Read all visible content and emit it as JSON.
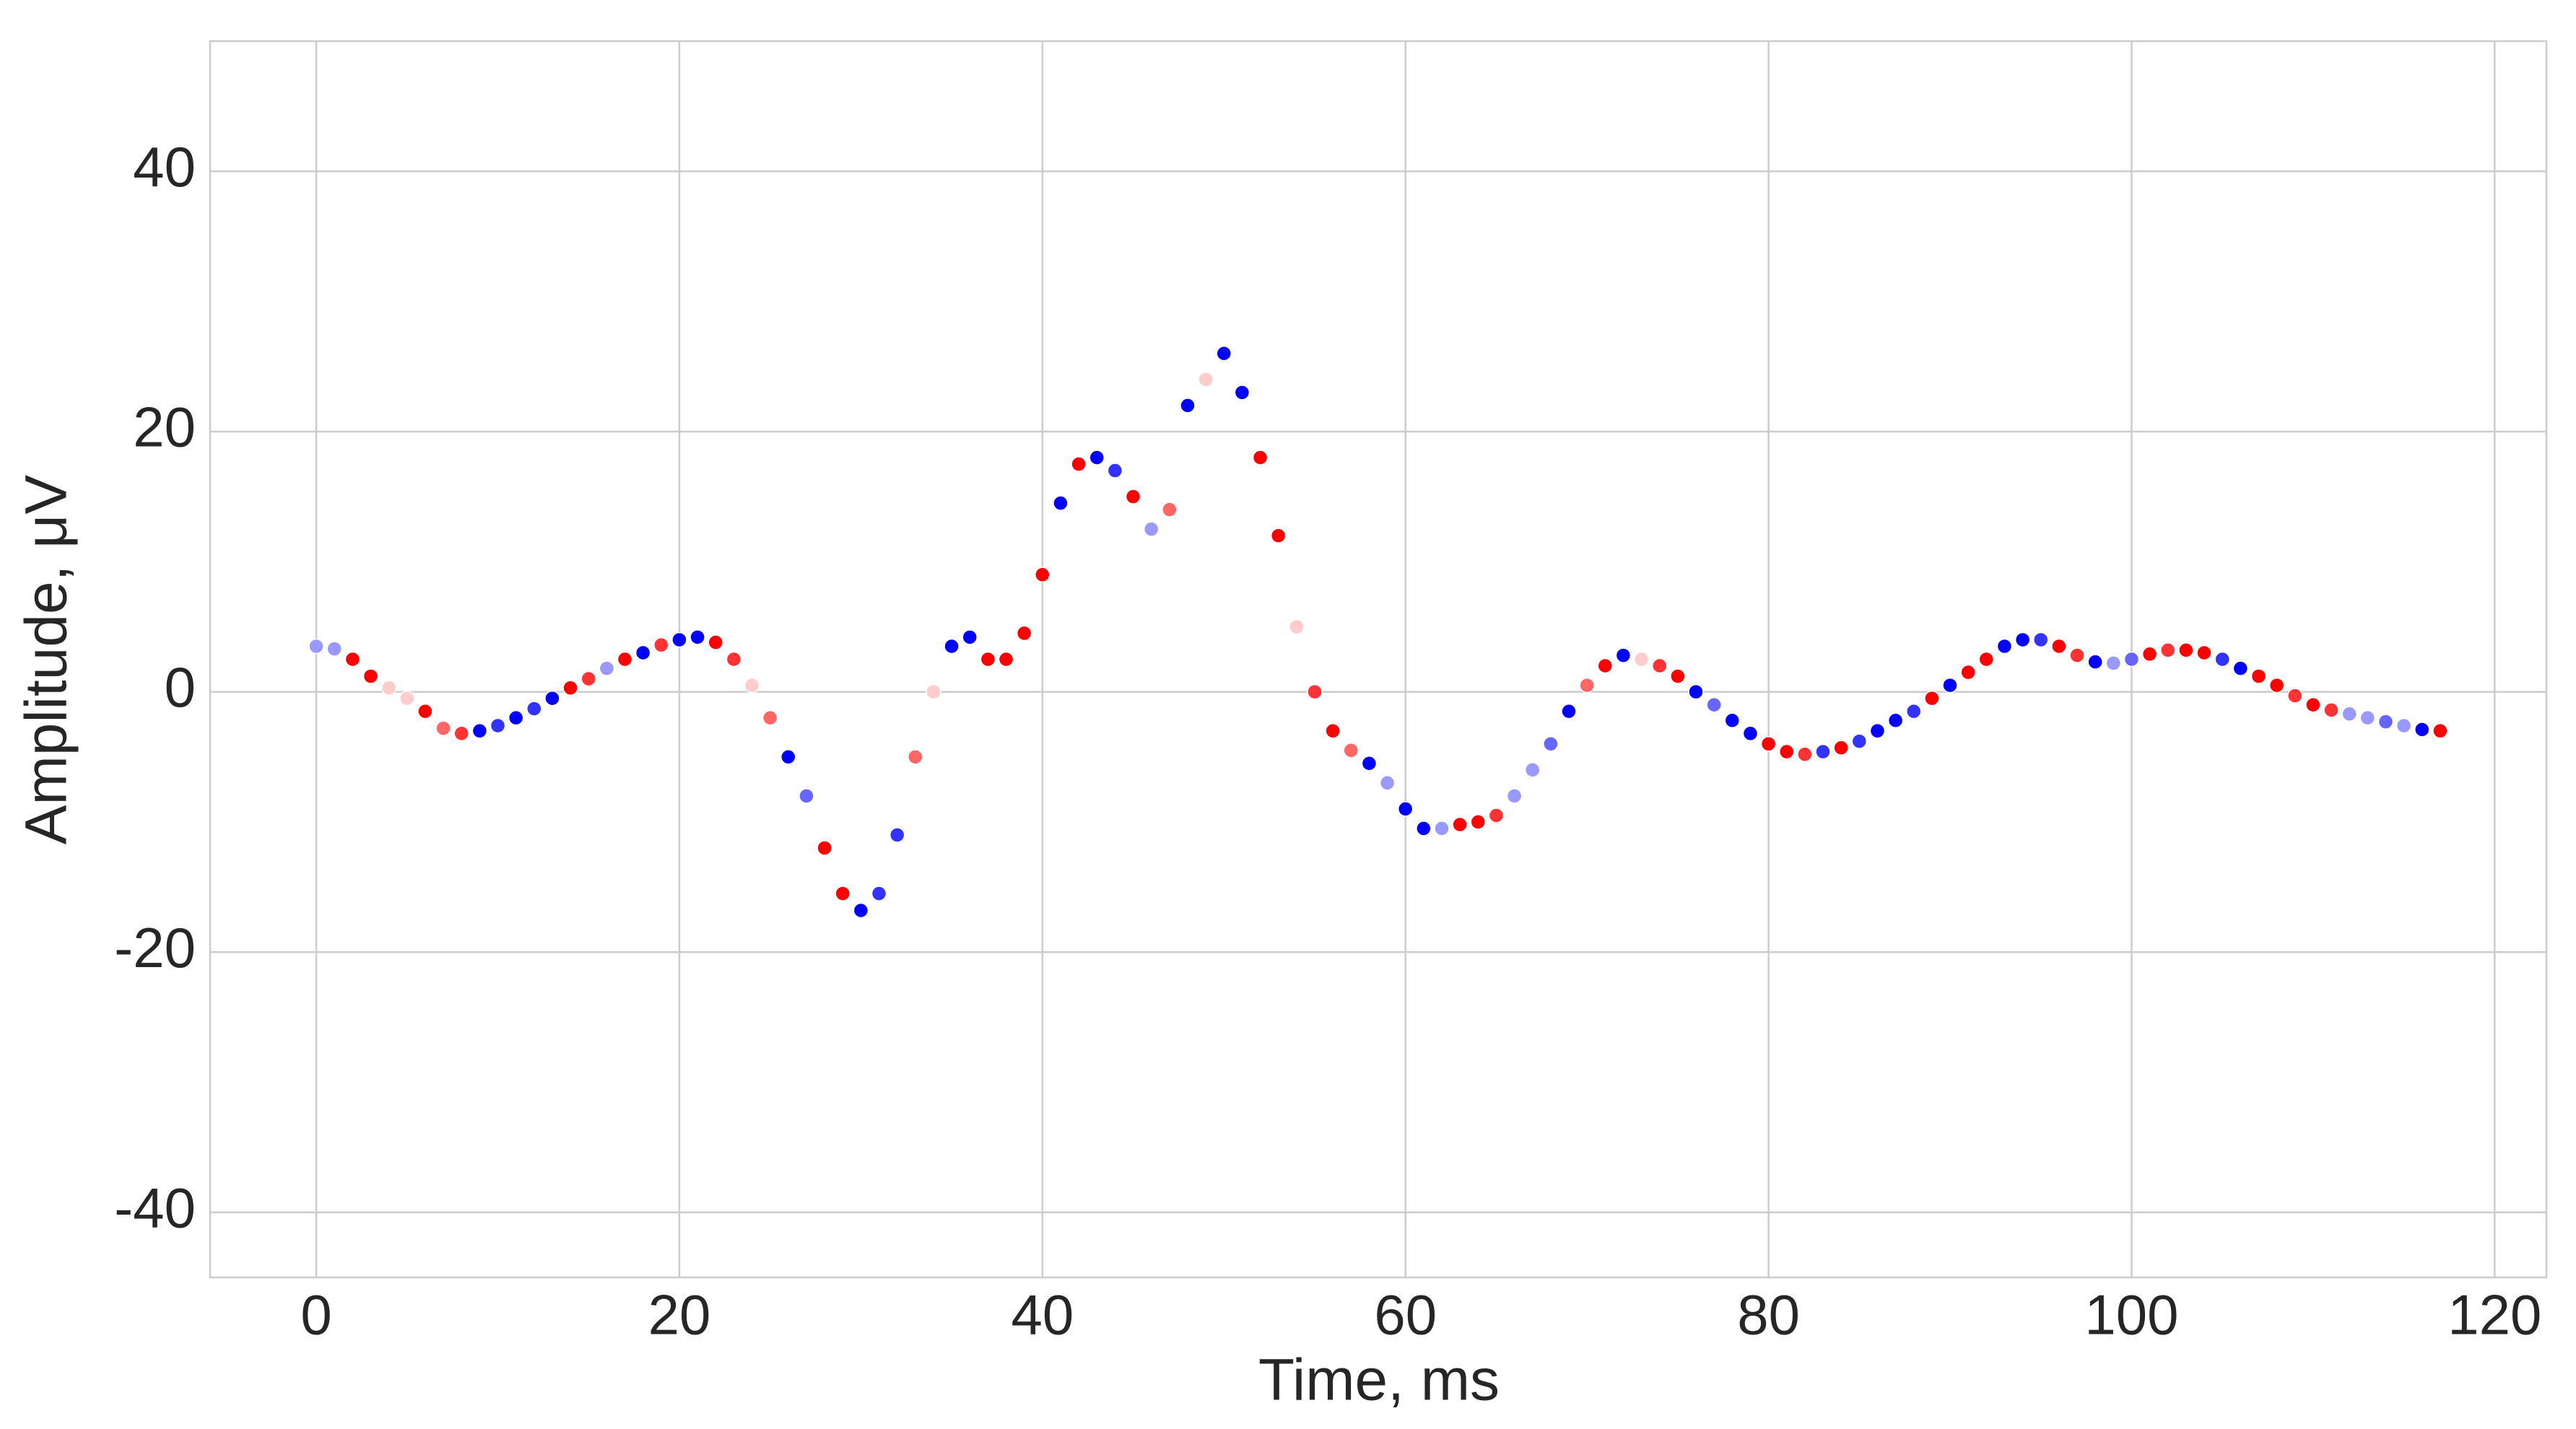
{
  "chart_data": {
    "type": "scatter",
    "xlabel": "Time, ms",
    "ylabel": "Amplitude, μV",
    "x": [
      0,
      1,
      2,
      3,
      4,
      5,
      6,
      7,
      8,
      9,
      10,
      11,
      12,
      13,
      14,
      15,
      16,
      17,
      18,
      19,
      20,
      21,
      22,
      23,
      24,
      25,
      26,
      27,
      28,
      29,
      30,
      31,
      32,
      33,
      34,
      35,
      36,
      37,
      38,
      39,
      40,
      41,
      42,
      43,
      44,
      45,
      46,
      47,
      48,
      49,
      50,
      51,
      52,
      53,
      54,
      55,
      56,
      57,
      58,
      59,
      60,
      61,
      62,
      63,
      64,
      65,
      66,
      67,
      68,
      69,
      70,
      71,
      72,
      73,
      74,
      75,
      76,
      77,
      78,
      79,
      80,
      81,
      82,
      83,
      84,
      85,
      86,
      87,
      88,
      89,
      90,
      91,
      92,
      93,
      94,
      95,
      96,
      97,
      98,
      99,
      100,
      101,
      102,
      103,
      104,
      105,
      106,
      107,
      108,
      109,
      110,
      111,
      112,
      113,
      114,
      115,
      116,
      117
    ],
    "values": [
      3.5,
      3.3,
      2.5,
      1.2,
      0.3,
      -0.5,
      -1.5,
      -2.8,
      -3.2,
      -3.0,
      -2.6,
      -2.0,
      -1.3,
      -0.5,
      0.3,
      1.0,
      1.8,
      2.5,
      3.0,
      3.6,
      4.0,
      4.2,
      3.8,
      2.5,
      0.5,
      -2.0,
      -5.0,
      -8.0,
      -12,
      -15.5,
      -16.8,
      -15.5,
      -11,
      -5,
      0,
      3.5,
      4.2,
      2.5,
      2.5,
      4.5,
      9,
      14.5,
      17.5,
      18,
      17,
      15,
      12.5,
      14,
      22,
      24,
      26,
      23,
      18,
      12,
      5,
      0,
      -3,
      -4.5,
      -5.5,
      -7,
      -9,
      -10.5,
      -10.5,
      -10.2,
      -10,
      -9.5,
      -8,
      -6,
      -4,
      -1.5,
      0.5,
      2,
      2.8,
      2.5,
      2,
      1.2,
      0,
      -1,
      -2.2,
      -3.2,
      -4,
      -4.6,
      -4.8,
      -4.6,
      -4.3,
      -3.8,
      -3,
      -2.2,
      -1.5,
      -0.5,
      0.5,
      1.5,
      2.5,
      3.5,
      4.0,
      4.0,
      3.5,
      2.8,
      2.3,
      2.2,
      2.5,
      2.9,
      3.2,
      3.2,
      3.0,
      2.5,
      1.8,
      1.2,
      0.5,
      -0.3,
      -1.0,
      -1.4,
      -1.7,
      -2.0,
      -2.3,
      -2.6,
      -2.9,
      -3.0
    ],
    "colors": [
      "#9999ff",
      "#9999ff",
      "#ff0000",
      "#ff0000",
      "#ffcccc",
      "#ffcccc",
      "#ff0000",
      "#ff6666",
      "#ff3333",
      "#0000ff",
      "#3333ff",
      "#0000ff",
      "#3333ff",
      "#0000ff",
      "#ff0000",
      "#ff3333",
      "#9999ff",
      "#ff0000",
      "#0000ff",
      "#ff3333",
      "#0000ff",
      "#0000ff",
      "#ff0000",
      "#ff3333",
      "#ffcccc",
      "#ff6666",
      "#0000ff",
      "#6666ff",
      "#ff0000",
      "#ff0000",
      "#0000ff",
      "#3333ff",
      "#3333ff",
      "#ff6666",
      "#ffcccc",
      "#0000ff",
      "#0000ff",
      "#ff0000",
      "#ff0000",
      "#ff0000",
      "#ff0000",
      "#0000ff",
      "#ff0000",
      "#0000ff",
      "#3333ff",
      "#ff0000",
      "#9999ff",
      "#ff6666",
      "#0000ff",
      "#ffcccc",
      "#0000ff",
      "#0000ff",
      "#ff0000",
      "#ff0000",
      "#ffcccc",
      "#ff3333",
      "#ff0000",
      "#ff6666",
      "#0000ff",
      "#9999ff",
      "#0000ff",
      "#0000ff",
      "#9999ff",
      "#ff0000",
      "#ff0000",
      "#ff3333",
      "#9999ff",
      "#9999ff",
      "#6666ff",
      "#0000ff",
      "#ff6666",
      "#ff0000",
      "#0000ff",
      "#ffcccc",
      "#ff3333",
      "#ff0000",
      "#0000ff",
      "#6666ff",
      "#0000ff",
      "#0000ff",
      "#ff0000",
      "#ff0000",
      "#ff3333",
      "#3333ff",
      "#ff0000",
      "#3333ff",
      "#0000ff",
      "#0000ff",
      "#3333ff",
      "#ff0000",
      "#0000ff",
      "#ff0000",
      "#ff0000",
      "#0000ff",
      "#0000ff",
      "#3333ff",
      "#ff0000",
      "#ff3333",
      "#0000ff",
      "#9999ff",
      "#6666ff",
      "#ff0000",
      "#ff3333",
      "#ff0000",
      "#ff0000",
      "#3333ff",
      "#0000ff",
      "#ff0000",
      "#ff0000",
      "#ff3333",
      "#ff0000",
      "#ff3333",
      "#9999ff",
      "#9999ff",
      "#6666ff",
      "#9999ff",
      "#0000ff",
      "#ff0000"
    ],
    "xlim": [
      -5.85,
      122.85
    ],
    "xticks": [
      0,
      20,
      40,
      60,
      80,
      100,
      120
    ],
    "ylim": [
      -45,
      50
    ],
    "yticks": [
      -40,
      -20,
      0,
      20,
      40
    ],
    "grid": true
  }
}
